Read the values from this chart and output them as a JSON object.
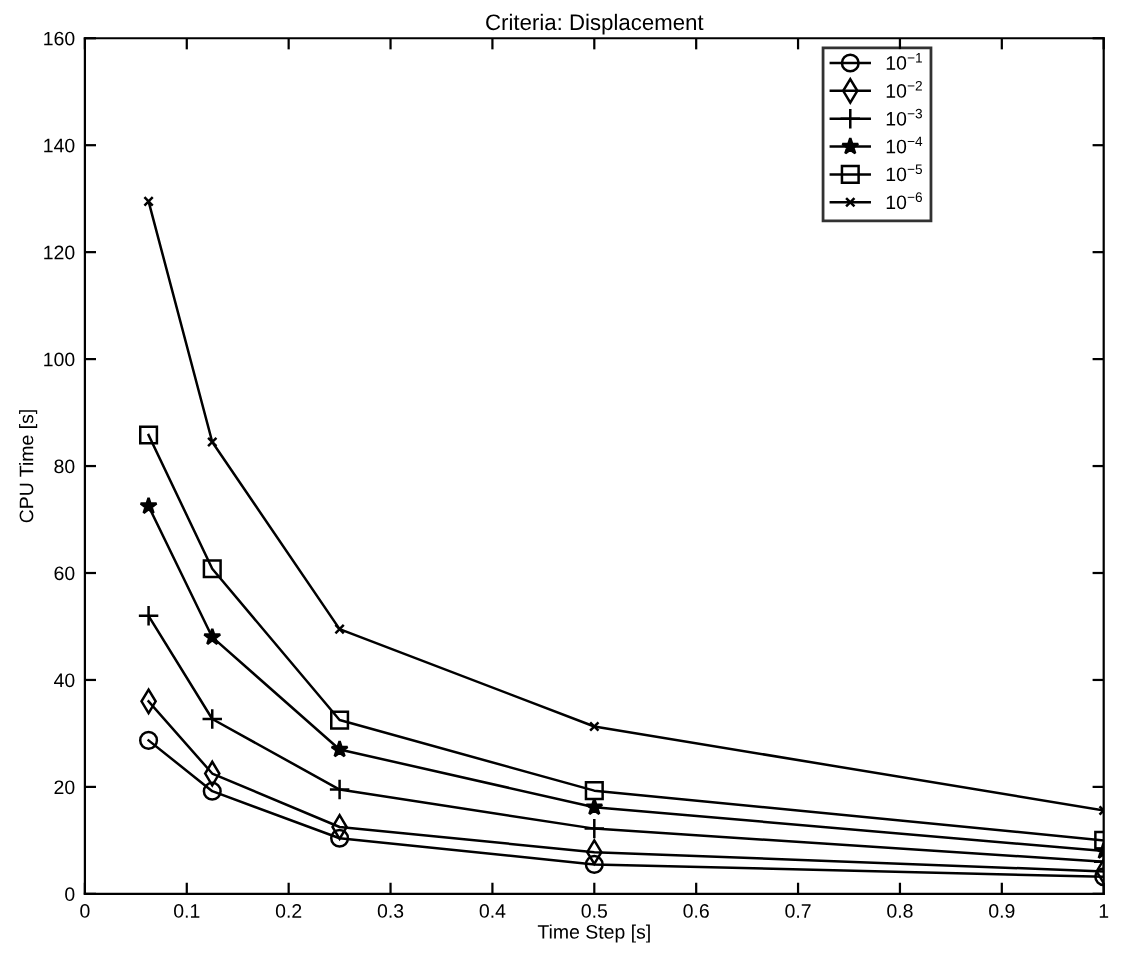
{
  "chart_data": {
    "type": "line",
    "title": "Criteria: Displacement",
    "xlabel": "Time Step [s]",
    "ylabel": "CPU Time [s]",
    "x": [
      0.0625,
      0.125,
      0.25,
      0.5,
      1
    ],
    "series": [
      {
        "name": "10$^{−1}$",
        "color": "#000000",
        "marker": "circle",
        "values": [
          28.7,
          19.2,
          10.4,
          5.5,
          3.2
        ]
      },
      {
        "name": "10$^{−2}$",
        "color": "#000000",
        "marker": "diamond",
        "values": [
          36,
          22.5,
          12.5,
          7.8,
          4.2
        ]
      },
      {
        "name": "10$^{−3}$",
        "color": "#000000",
        "marker": "cross",
        "values": [
          52,
          32.7,
          19.5,
          12.2,
          6
        ]
      },
      {
        "name": "10$^{−4}$",
        "color": "#000000",
        "marker": "star",
        "values": [
          72.5,
          48,
          27,
          16.2,
          8
        ]
      },
      {
        "name": "10$^{−5}$",
        "color": "#000000",
        "marker": "square",
        "values": [
          85.8,
          60.8,
          32.5,
          19.3,
          10
        ]
      },
      {
        "name": "10$^{−6}$",
        "color": "#000000",
        "marker": "x",
        "values": [
          129.5,
          84.5,
          49.5,
          31.3,
          15.6
        ]
      }
    ],
    "xlim": [
      0,
      1
    ],
    "xticks": [
      0,
      0.1,
      0.2,
      0.3,
      0.4,
      0.5,
      0.6,
      0.7,
      0.8,
      0.9,
      1
    ],
    "ylim": [
      0,
      160
    ],
    "yticks": [
      0,
      20,
      40,
      60,
      80,
      100,
      120,
      140,
      160
    ],
    "grid": false,
    "legend": "top right",
    "line_style": "solid"
  }
}
